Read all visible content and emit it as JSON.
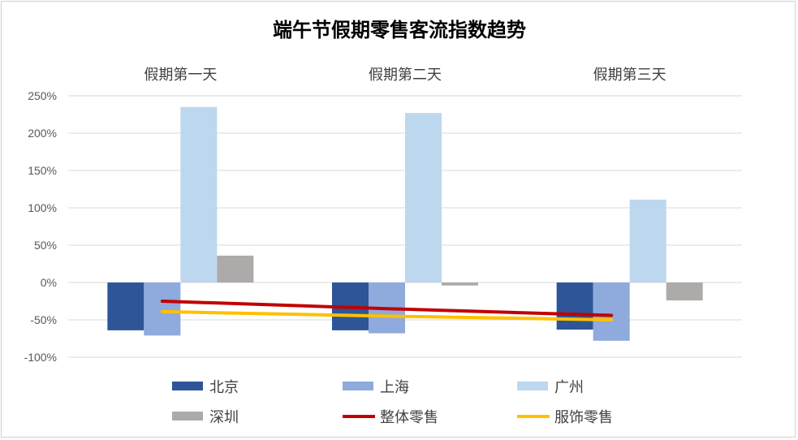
{
  "chart_data": {
    "type": "bar",
    "title": "端午节假期零售客流指数趋势",
    "categories": [
      "假期第一天",
      "假期第二天",
      "假期第三天"
    ],
    "yticks": [
      "250%",
      "200%",
      "150%",
      "100%",
      "50%",
      "0%",
      "-50%",
      "-100%"
    ],
    "ylim": [
      -100,
      250
    ],
    "series": [
      {
        "name": "北京",
        "kind": "bar",
        "color": "#2e5597",
        "values": [
          -64,
          -64,
          -63
        ]
      },
      {
        "name": "上海",
        "kind": "bar",
        "color": "#8faadc",
        "values": [
          -71,
          -68,
          -78
        ]
      },
      {
        "name": "广州",
        "kind": "bar",
        "color": "#bdd7ee",
        "values": [
          235,
          227,
          111
        ]
      },
      {
        "name": "深圳",
        "kind": "bar",
        "color": "#aeaaaa",
        "values": [
          36,
          -4,
          -24
        ]
      },
      {
        "name": "整体零售",
        "kind": "line",
        "color": "#c00000",
        "values": [
          -25,
          -35,
          -44
        ]
      },
      {
        "name": "服饰零售",
        "kind": "line",
        "color": "#ffc000",
        "values": [
          -39,
          -45,
          -50
        ]
      }
    ],
    "grid": true,
    "legend_position": "bottom"
  }
}
